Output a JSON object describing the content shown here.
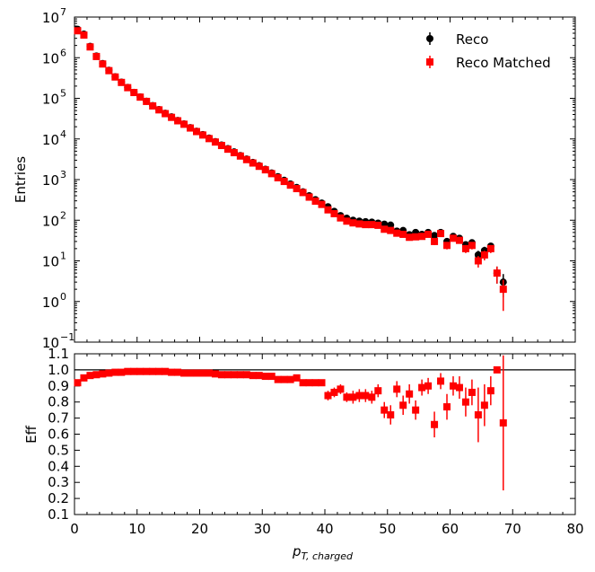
{
  "chart_data": [
    {
      "type": "scatter",
      "panel": "top",
      "ylabel": "Entries",
      "yscale": "log",
      "ylim": [
        0.1,
        10000000
      ],
      "xlim": [
        0,
        80
      ],
      "y_tick_labels": [
        "10",
        "10",
        "10",
        "10",
        "10",
        "10",
        "10",
        "10",
        "10"
      ],
      "y_tick_exponents": [
        "−1",
        "0",
        "1",
        "2",
        "3",
        "4",
        "5",
        "6",
        "7"
      ],
      "legend": {
        "position": "top-right",
        "entries": [
          "Reco",
          "Reco Matched"
        ]
      },
      "series": [
        {
          "name": "Reco",
          "color": "#000000",
          "marker": "circle",
          "x": [
            0.5,
            1.5,
            2.5,
            3.5,
            4.5,
            5.5,
            6.5,
            7.5,
            8.5,
            9.5,
            10.5,
            11.5,
            12.5,
            13.5,
            14.5,
            15.5,
            16.5,
            17.5,
            18.5,
            19.5,
            20.5,
            21.5,
            22.5,
            23.5,
            24.5,
            25.5,
            26.5,
            27.5,
            28.5,
            29.5,
            30.5,
            31.5,
            32.5,
            33.5,
            34.5,
            35.5,
            36.5,
            37.5,
            38.5,
            39.5,
            40.5,
            41.5,
            42.5,
            43.5,
            44.5,
            45.5,
            46.5,
            47.5,
            48.5,
            49.5,
            50.5,
            51.5,
            52.5,
            53.5,
            54.5,
            55.5,
            56.5,
            57.5,
            58.5,
            59.5,
            60.5,
            61.5,
            62.5,
            63.5,
            64.5,
            65.5,
            66.5,
            67.5,
            68.5
          ],
          "y": [
            5000000,
            3800000,
            1900000,
            1100000,
            720000,
            490000,
            340000,
            250000,
            185000,
            140000,
            108000,
            85000,
            66000,
            53000,
            43000,
            35000,
            28500,
            23500,
            19000,
            15500,
            12800,
            10500,
            8600,
            7100,
            5800,
            4800,
            3900,
            3200,
            2650,
            2200,
            1800,
            1460,
            1180,
            960,
            780,
            640,
            500,
            400,
            320,
            265,
            215,
            165,
            130,
            112,
            100,
            95,
            92,
            90,
            85,
            80,
            76,
            54,
            56,
            44,
            50,
            45,
            50,
            42,
            50,
            30,
            40,
            36,
            25,
            28,
            14,
            18,
            23,
            5,
            3
          ]
        },
        {
          "name": "Reco Matched",
          "color": "#ff0000",
          "marker": "square",
          "x": [
            0.5,
            1.5,
            2.5,
            3.5,
            4.5,
            5.5,
            6.5,
            7.5,
            8.5,
            9.5,
            10.5,
            11.5,
            12.5,
            13.5,
            14.5,
            15.5,
            16.5,
            17.5,
            18.5,
            19.5,
            20.5,
            21.5,
            22.5,
            23.5,
            24.5,
            25.5,
            26.5,
            27.5,
            28.5,
            29.5,
            30.5,
            31.5,
            32.5,
            33.5,
            34.5,
            35.5,
            36.5,
            37.5,
            38.5,
            39.5,
            40.5,
            41.5,
            42.5,
            43.5,
            44.5,
            45.5,
            46.5,
            47.5,
            48.5,
            49.5,
            50.5,
            51.5,
            52.5,
            53.5,
            54.5,
            55.5,
            56.5,
            57.5,
            58.5,
            59.5,
            60.5,
            61.5,
            62.5,
            63.5,
            64.5,
            65.5,
            66.5,
            67.5,
            68.5
          ],
          "y": [
            4600000,
            3600000,
            1840000,
            1070000,
            700000,
            480000,
            335000,
            246000,
            183000,
            139000,
            107000,
            84000,
            65000,
            52000,
            42000,
            34000,
            28000,
            23000,
            18600,
            15200,
            12500,
            10200,
            8400,
            6900,
            5600,
            4600,
            3800,
            3100,
            2560,
            2120,
            1740,
            1400,
            1110,
            900,
            730,
            600,
            480,
            370,
            295,
            245,
            180,
            145,
            114,
            95,
            86,
            81,
            78,
            78,
            75,
            60,
            56,
            48,
            45,
            38,
            39,
            40,
            45,
            30,
            47,
            24,
            36,
            32,
            20,
            24,
            10,
            14,
            20,
            5,
            2
          ]
        }
      ]
    },
    {
      "type": "scatter",
      "panel": "bottom",
      "xlabel": "p",
      "xlabel_subscript": "T, charged",
      "ylabel": "Eff",
      "ylim": [
        0.1,
        1.1
      ],
      "xlim": [
        0,
        80
      ],
      "x_tick_labels": [
        "0",
        "10",
        "20",
        "30",
        "40",
        "50",
        "60",
        "70",
        "80"
      ],
      "y_tick_labels": [
        "0.1",
        "0.2",
        "0.3",
        "0.4",
        "0.5",
        "0.6",
        "0.7",
        "0.8",
        "0.9",
        "1.0",
        "1.1"
      ],
      "reference_line": 1.0,
      "series": [
        {
          "name": "Eff",
          "color": "#ff0000",
          "marker": "square",
          "x": [
            0.5,
            1.5,
            2.5,
            3.5,
            4.5,
            5.5,
            6.5,
            7.5,
            8.5,
            9.5,
            10.5,
            11.5,
            12.5,
            13.5,
            14.5,
            15.5,
            16.5,
            17.5,
            18.5,
            19.5,
            20.5,
            21.5,
            22.5,
            23.5,
            24.5,
            25.5,
            26.5,
            27.5,
            28.5,
            29.5,
            30.5,
            31.5,
            32.5,
            33.5,
            34.5,
            35.5,
            36.5,
            37.5,
            38.5,
            39.5,
            40.5,
            41.5,
            42.5,
            43.5,
            44.5,
            45.5,
            46.5,
            47.5,
            48.5,
            49.5,
            50.5,
            51.5,
            52.5,
            53.5,
            54.5,
            55.5,
            56.5,
            57.5,
            58.5,
            59.5,
            60.5,
            61.5,
            62.5,
            63.5,
            64.5,
            65.5,
            66.5,
            67.5,
            68.5
          ],
          "y": [
            0.92,
            0.95,
            0.965,
            0.97,
            0.975,
            0.98,
            0.985,
            0.985,
            0.99,
            0.99,
            0.99,
            0.99,
            0.99,
            0.99,
            0.99,
            0.985,
            0.985,
            0.98,
            0.98,
            0.98,
            0.98,
            0.98,
            0.975,
            0.97,
            0.97,
            0.97,
            0.97,
            0.97,
            0.965,
            0.965,
            0.96,
            0.96,
            0.94,
            0.94,
            0.94,
            0.95,
            0.92,
            0.92,
            0.92,
            0.92,
            0.84,
            0.86,
            0.88,
            0.83,
            0.83,
            0.84,
            0.84,
            0.83,
            0.87,
            0.75,
            0.72,
            0.88,
            0.78,
            0.85,
            0.75,
            0.89,
            0.9,
            0.66,
            0.93,
            0.77,
            0.9,
            0.89,
            0.8,
            0.86,
            0.72,
            0.78,
            0.87,
            1.0,
            0.67
          ],
          "err": [
            0.01,
            0.01,
            0.01,
            0.01,
            0.01,
            0.01,
            0.01,
            0.01,
            0.01,
            0.01,
            0.01,
            0.01,
            0.01,
            0.01,
            0.01,
            0.01,
            0.01,
            0.01,
            0.01,
            0.01,
            0.01,
            0.01,
            0.01,
            0.01,
            0.01,
            0.01,
            0.01,
            0.01,
            0.01,
            0.01,
            0.015,
            0.015,
            0.015,
            0.02,
            0.02,
            0.02,
            0.02,
            0.02,
            0.02,
            0.02,
            0.03,
            0.03,
            0.03,
            0.03,
            0.04,
            0.04,
            0.04,
            0.04,
            0.04,
            0.05,
            0.06,
            0.05,
            0.06,
            0.06,
            0.06,
            0.05,
            0.05,
            0.08,
            0.05,
            0.08,
            0.06,
            0.07,
            0.09,
            0.08,
            0.17,
            0.13,
            0.09,
            0.0,
            0.42
          ]
        }
      ]
    }
  ]
}
